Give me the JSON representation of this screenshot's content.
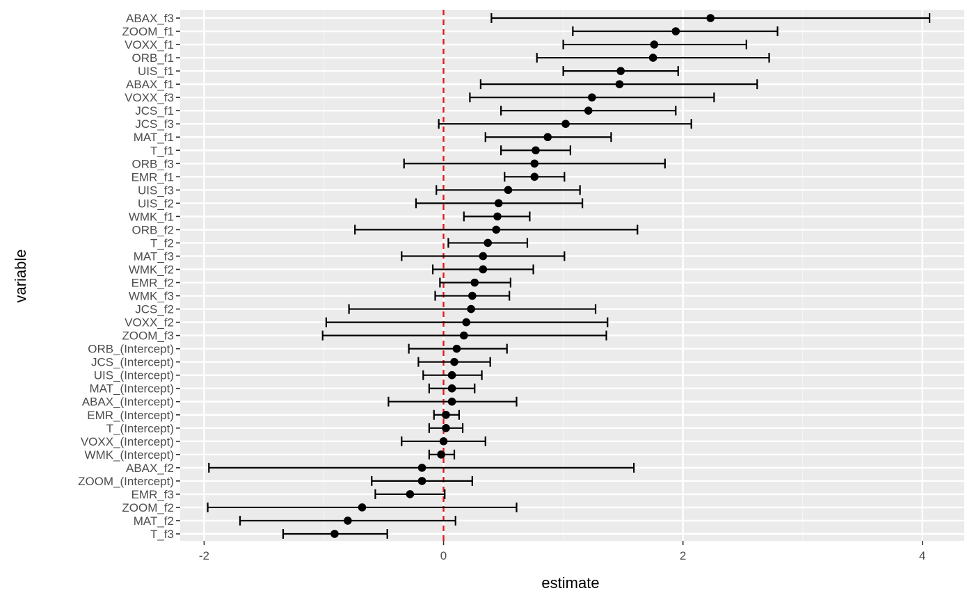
{
  "chart_data": {
    "type": "scatter",
    "subtype": "coefficient-plot-with-error-bars",
    "xlabel": "estimate",
    "ylabel": "variable",
    "xlim": [
      -2.2,
      4.35
    ],
    "x_ticks": [
      -2,
      0,
      2,
      4
    ],
    "x_tick_labels": [
      "-2",
      "0",
      "2",
      "4"
    ],
    "reference_line": {
      "x": 0,
      "color": "#e41a1c",
      "style": "dashed"
    },
    "grid": true,
    "panel_background": "#ebebeb",
    "point_color": "#000000",
    "points": [
      {
        "variable": "ABAX_f3",
        "estimate": 2.23,
        "low": 0.4,
        "high": 4.06
      },
      {
        "variable": "ZOOM_f1",
        "estimate": 1.94,
        "low": 1.08,
        "high": 2.79
      },
      {
        "variable": "VOXX_f1",
        "estimate": 1.76,
        "low": 1.0,
        "high": 2.53
      },
      {
        "variable": "ORB_f1",
        "estimate": 1.75,
        "low": 0.78,
        "high": 2.72
      },
      {
        "variable": "UIS_f1",
        "estimate": 1.48,
        "low": 1.0,
        "high": 1.96
      },
      {
        "variable": "ABAX_f1",
        "estimate": 1.47,
        "low": 0.31,
        "high": 2.62
      },
      {
        "variable": "VOXX_f3",
        "estimate": 1.24,
        "low": 0.22,
        "high": 2.26
      },
      {
        "variable": "JCS_f1",
        "estimate": 1.21,
        "low": 0.48,
        "high": 1.94
      },
      {
        "variable": "JCS_f3",
        "estimate": 1.02,
        "low": -0.04,
        "high": 2.07
      },
      {
        "variable": "MAT_f1",
        "estimate": 0.87,
        "low": 0.35,
        "high": 1.4
      },
      {
        "variable": "T_f1",
        "estimate": 0.77,
        "low": 0.48,
        "high": 1.06
      },
      {
        "variable": "ORB_f3",
        "estimate": 0.76,
        "low": -0.33,
        "high": 1.85
      },
      {
        "variable": "EMR_f1",
        "estimate": 0.76,
        "low": 0.51,
        "high": 1.01
      },
      {
        "variable": "UIS_f3",
        "estimate": 0.54,
        "low": -0.06,
        "high": 1.14
      },
      {
        "variable": "UIS_f2",
        "estimate": 0.46,
        "low": -0.23,
        "high": 1.16
      },
      {
        "variable": "WMK_f1",
        "estimate": 0.45,
        "low": 0.17,
        "high": 0.72
      },
      {
        "variable": "ORB_f2",
        "estimate": 0.44,
        "low": -0.74,
        "high": 1.62
      },
      {
        "variable": "T_f2",
        "estimate": 0.37,
        "low": 0.04,
        "high": 0.7
      },
      {
        "variable": "MAT_f3",
        "estimate": 0.33,
        "low": -0.35,
        "high": 1.01
      },
      {
        "variable": "WMK_f2",
        "estimate": 0.33,
        "low": -0.09,
        "high": 0.75
      },
      {
        "variable": "EMR_f2",
        "estimate": 0.26,
        "low": -0.03,
        "high": 0.56
      },
      {
        "variable": "WMK_f3",
        "estimate": 0.24,
        "low": -0.07,
        "high": 0.55
      },
      {
        "variable": "JCS_f2",
        "estimate": 0.23,
        "low": -0.79,
        "high": 1.27
      },
      {
        "variable": "VOXX_f2",
        "estimate": 0.19,
        "low": -0.98,
        "high": 1.37
      },
      {
        "variable": "ZOOM_f3",
        "estimate": 0.17,
        "low": -1.01,
        "high": 1.36
      },
      {
        "variable": "ORB_(Intercept)",
        "estimate": 0.11,
        "low": -0.29,
        "high": 0.53
      },
      {
        "variable": "JCS_(Intercept)",
        "estimate": 0.09,
        "low": -0.21,
        "high": 0.39
      },
      {
        "variable": "UIS_(Intercept)",
        "estimate": 0.07,
        "low": -0.17,
        "high": 0.32
      },
      {
        "variable": "MAT_(Intercept)",
        "estimate": 0.07,
        "low": -0.12,
        "high": 0.26
      },
      {
        "variable": "ABAX_(Intercept)",
        "estimate": 0.07,
        "low": -0.46,
        "high": 0.61
      },
      {
        "variable": "EMR_(Intercept)",
        "estimate": 0.02,
        "low": -0.08,
        "high": 0.13
      },
      {
        "variable": "T_(Intercept)",
        "estimate": 0.02,
        "low": -0.12,
        "high": 0.16
      },
      {
        "variable": "VOXX_(Intercept)",
        "estimate": 0.0,
        "low": -0.35,
        "high": 0.35
      },
      {
        "variable": "WMK_(Intercept)",
        "estimate": -0.02,
        "low": -0.12,
        "high": 0.09
      },
      {
        "variable": "ABAX_f2",
        "estimate": -0.18,
        "low": -1.96,
        "high": 1.59
      },
      {
        "variable": "ZOOM_(Intercept)",
        "estimate": -0.18,
        "low": -0.6,
        "high": 0.24
      },
      {
        "variable": "EMR_f3",
        "estimate": -0.28,
        "low": -0.57,
        "high": 0.01
      },
      {
        "variable": "ZOOM_f2",
        "estimate": -0.68,
        "low": -1.97,
        "high": 0.61
      },
      {
        "variable": "MAT_f2",
        "estimate": -0.8,
        "low": -1.7,
        "high": 0.1
      },
      {
        "variable": "T_f3",
        "estimate": -0.91,
        "low": -1.34,
        "high": -0.47
      }
    ]
  }
}
